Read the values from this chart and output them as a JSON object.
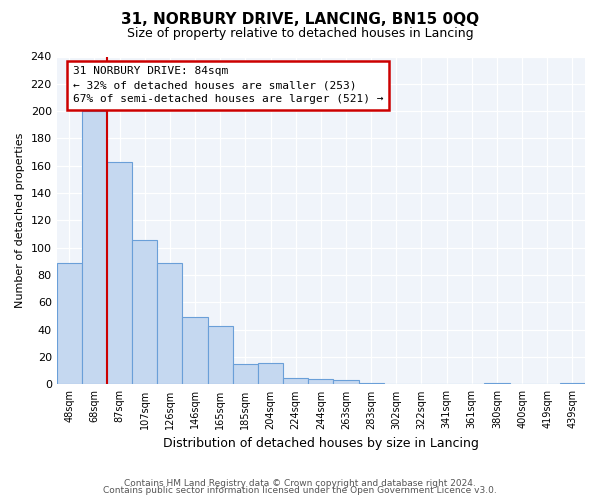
{
  "title": "31, NORBURY DRIVE, LANCING, BN15 0QQ",
  "subtitle": "Size of property relative to detached houses in Lancing",
  "xlabel": "Distribution of detached houses by size in Lancing",
  "ylabel": "Number of detached properties",
  "footer_line1": "Contains HM Land Registry data © Crown copyright and database right 2024.",
  "footer_line2": "Contains public sector information licensed under the Open Government Licence v3.0.",
  "bar_labels": [
    "48sqm",
    "68sqm",
    "87sqm",
    "107sqm",
    "126sqm",
    "146sqm",
    "165sqm",
    "185sqm",
    "204sqm",
    "224sqm",
    "244sqm",
    "263sqm",
    "283sqm",
    "302sqm",
    "322sqm",
    "341sqm",
    "361sqm",
    "380sqm",
    "400sqm",
    "419sqm",
    "439sqm"
  ],
  "bar_values": [
    89,
    200,
    163,
    106,
    89,
    49,
    43,
    15,
    16,
    5,
    4,
    3,
    1,
    0,
    0,
    0,
    0,
    1,
    0,
    0,
    1
  ],
  "bar_color": "#c5d8f0",
  "bar_edge_color": "#6a9fd8",
  "ylim": [
    0,
    240
  ],
  "yticks": [
    0,
    20,
    40,
    60,
    80,
    100,
    120,
    140,
    160,
    180,
    200,
    220,
    240
  ],
  "property_line_color": "#cc0000",
  "annotation_title": "31 NORBURY DRIVE: 84sqm",
  "annotation_line1": "← 32% of detached houses are smaller (253)",
  "annotation_line2": "67% of semi-detached houses are larger (521) →",
  "annotation_box_edge": "#cc0000",
  "background_color": "#ffffff",
  "plot_bg_color": "#f0f4fa"
}
